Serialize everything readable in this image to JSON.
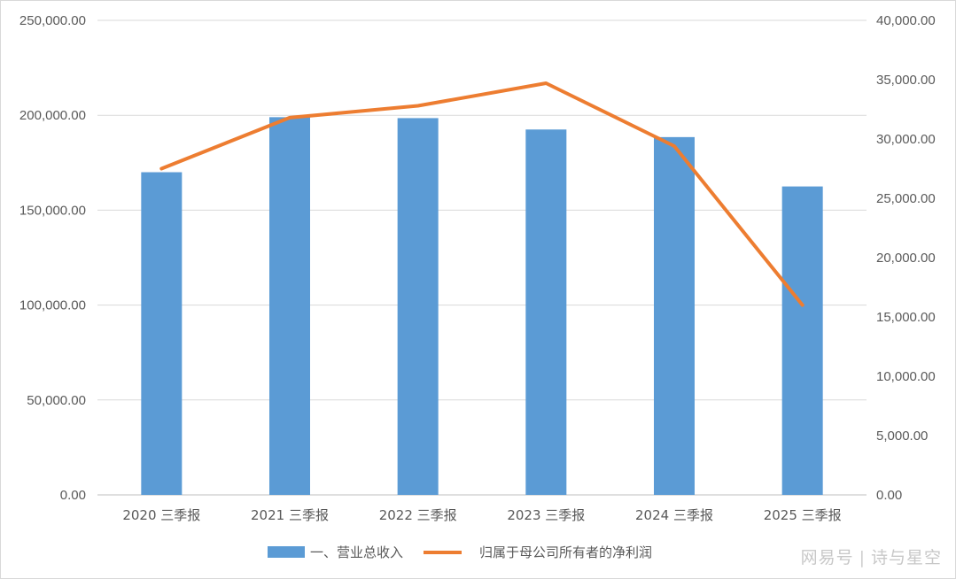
{
  "chart_data": {
    "type": "bar+line",
    "categories": [
      "2020 三季报",
      "2021 三季报",
      "2022 三季报",
      "2023 三季报",
      "2024 三季报",
      "2025 三季报"
    ],
    "series": [
      {
        "name": "一、营业总收入",
        "type": "bar",
        "axis": "left",
        "color": "#5b9bd5",
        "values": [
          170000,
          199000,
          198500,
          192500,
          188500,
          162500
        ]
      },
      {
        "name": "归属于母公司所有者的净利润",
        "type": "line",
        "axis": "right",
        "color": "#ed7d31",
        "values": [
          27500,
          31800,
          32800,
          34700,
          29400,
          16000
        ]
      }
    ],
    "y_left": {
      "min": 0,
      "max": 250000,
      "ticks": [
        "0.00",
        "50,000.00",
        "100,000.00",
        "150,000.00",
        "200,000.00",
        "250,000.00"
      ]
    },
    "y_right": {
      "min": 0,
      "max": 40000,
      "ticks": [
        "0.00",
        "5,000.00",
        "10,000.00",
        "15,000.00",
        "20,000.00",
        "25,000.00",
        "30,000.00",
        "35,000.00",
        "40,000.00"
      ]
    },
    "grid": true,
    "legend": "bottom"
  },
  "watermark": {
    "source": "网易号",
    "separator": "|",
    "author": "诗与星空"
  }
}
